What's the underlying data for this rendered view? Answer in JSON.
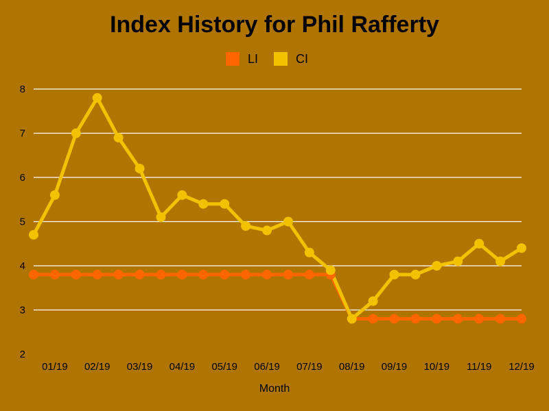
{
  "chart_data": {
    "type": "line",
    "title": "Index History for Phil Rafferty",
    "xlabel": "Month",
    "ylabel": "",
    "ylim": [
      2,
      8
    ],
    "yticks": [
      "2",
      "3",
      "4",
      "5",
      "6",
      "7",
      "8"
    ],
    "x_tick_labels": [
      "01/19",
      "02/19",
      "03/19",
      "04/19",
      "05/19",
      "06/19",
      "07/19",
      "08/19",
      "09/19",
      "10/19",
      "11/19",
      "12/19"
    ],
    "grid": true,
    "legend_position": "top",
    "series": [
      {
        "name": "LI",
        "color": "#ff6600",
        "values": [
          3.8,
          3.8,
          3.8,
          3.8,
          3.8,
          3.8,
          3.8,
          3.8,
          3.8,
          3.8,
          3.8,
          3.8,
          3.8,
          3.8,
          3.8,
          2.8,
          2.8,
          2.8,
          2.8,
          2.8,
          2.8,
          2.8,
          2.8,
          2.8
        ]
      },
      {
        "name": "CI",
        "color": "#f2c200",
        "values": [
          4.7,
          5.6,
          7.0,
          7.8,
          6.9,
          6.2,
          5.1,
          5.6,
          5.4,
          5.4,
          4.9,
          4.8,
          5.0,
          4.3,
          3.9,
          2.8,
          3.2,
          3.8,
          3.8,
          4.0,
          4.1,
          4.5,
          4.1,
          4.4
        ]
      }
    ]
  }
}
